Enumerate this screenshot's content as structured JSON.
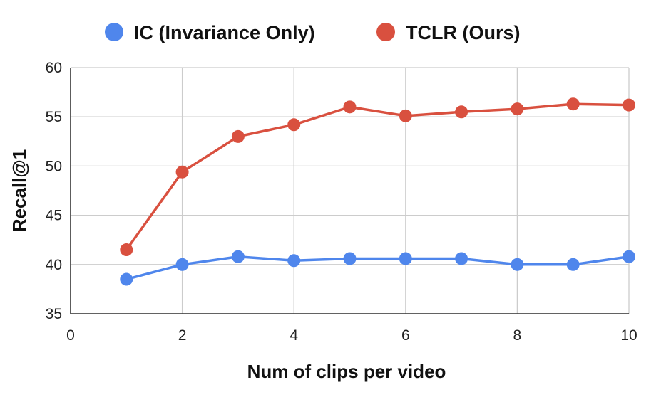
{
  "chart_data": {
    "type": "line",
    "title": "",
    "xlabel": "Num of clips per video",
    "ylabel": "Recall@1",
    "xlim": [
      0,
      10
    ],
    "ylim": [
      35,
      60
    ],
    "x_ticks": [
      0,
      2,
      4,
      6,
      8,
      10
    ],
    "y_ticks": [
      35,
      40,
      45,
      50,
      55,
      60
    ],
    "grid": true,
    "legend_position": "top",
    "x": [
      1,
      2,
      3,
      4,
      5,
      6,
      7,
      8,
      9,
      10
    ],
    "series": [
      {
        "name": "IC (Invariance Only)",
        "color": "#4f86ec",
        "values": [
          38.5,
          40.0,
          40.8,
          40.4,
          40.6,
          40.6,
          40.6,
          40.0,
          40.0,
          40.8
        ]
      },
      {
        "name": "TCLR (Ours)",
        "color": "#d9503f",
        "values": [
          41.5,
          49.4,
          53.0,
          54.2,
          56.0,
          55.1,
          55.5,
          55.8,
          56.3,
          56.2
        ]
      }
    ]
  }
}
